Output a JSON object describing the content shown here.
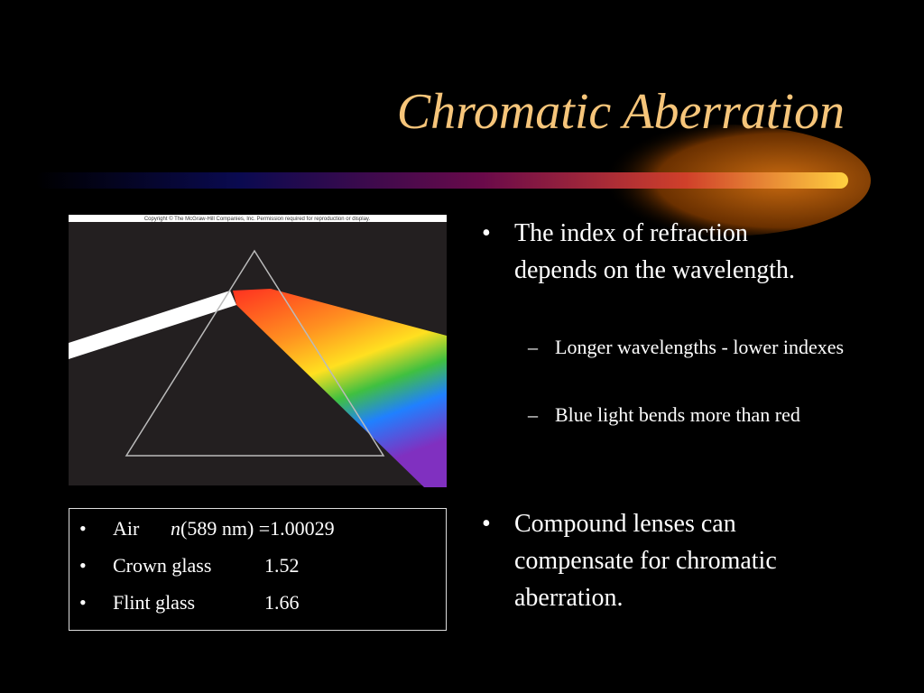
{
  "title": "Chromatic Aberration",
  "figure": {
    "copyright": "Copyright © The McGraw-Hill Companies, Inc. Permission required for reproduction or display."
  },
  "materials": [
    {
      "material": "Air",
      "symbol": "n",
      "value": "(589 nm) =1.00029"
    },
    {
      "material": "Crown glass",
      "value": "1.52"
    },
    {
      "material": "Flint glass",
      "value": "1.66"
    }
  ],
  "bullets": [
    {
      "text": "The index of refraction depends on the wavelength.",
      "sub": [
        "Longer wavelengths - lower indexes",
        "Blue light bends more than red"
      ]
    },
    {
      "text": "Compound lenses can compensate for chromatic aberration."
    }
  ]
}
